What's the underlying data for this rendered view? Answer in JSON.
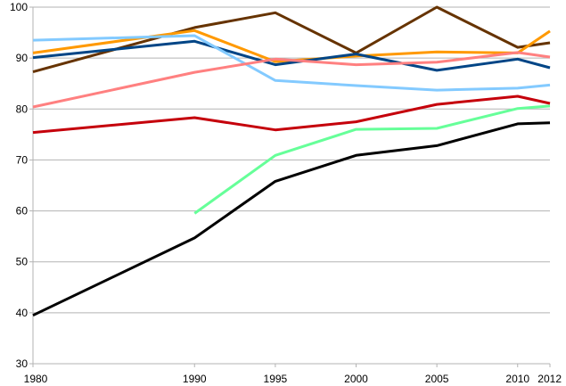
{
  "chart_data": {
    "type": "line",
    "title": "",
    "xlabel": "",
    "ylabel": "",
    "x": [
      1980,
      1990,
      1995,
      2000,
      2005,
      2010,
      2012
    ],
    "x_tick_labels": [
      "1980",
      "1990",
      "1995",
      "2000",
      "2005",
      "2010",
      "2012"
    ],
    "y_ticks": [
      30,
      40,
      50,
      60,
      70,
      80,
      90,
      100
    ],
    "y_tick_labels": [
      "30",
      "40",
      "50",
      "60",
      "70",
      "80",
      "90",
      "100"
    ],
    "ylim": [
      30,
      100
    ],
    "grid": "horizontal",
    "legend": "none",
    "series": [
      {
        "color": "#663300",
        "values": [
          87.3,
          96.0,
          98.9,
          91.0,
          100.0,
          92.1,
          93.0
        ]
      },
      {
        "color": "#FF9900",
        "values": [
          91.0,
          95.4,
          89.3,
          90.4,
          91.2,
          91.0,
          95.3
        ]
      },
      {
        "color": "#004586",
        "values": [
          90.1,
          93.3,
          88.7,
          90.8,
          87.6,
          89.8,
          88.1
        ]
      },
      {
        "color": "#83CAFF",
        "values": [
          93.5,
          94.4,
          85.6,
          84.6,
          83.7,
          84.1,
          84.7
        ]
      },
      {
        "color": "#FF8080",
        "values": [
          80.4,
          87.2,
          89.8,
          88.7,
          89.2,
          91.1,
          90.2
        ]
      },
      {
        "color": "#C5000B",
        "values": [
          75.4,
          78.3,
          75.9,
          77.5,
          80.9,
          82.5,
          81.1
        ]
      },
      {
        "color": "#66FF99",
        "values": [
          null,
          59.5,
          70.9,
          76.0,
          76.2,
          80.1,
          80.6
        ]
      },
      {
        "color": "#000000",
        "values": [
          39.5,
          54.7,
          65.8,
          70.9,
          72.8,
          77.1,
          77.3
        ]
      }
    ]
  }
}
